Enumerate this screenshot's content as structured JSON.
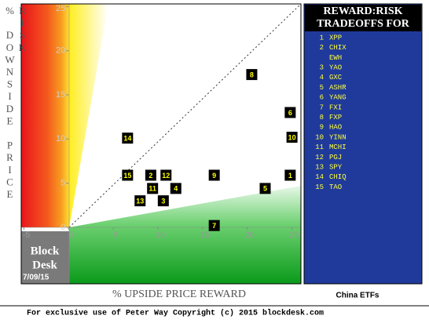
{
  "chart_data": {
    "type": "scatter",
    "x_label": "% UPSIDE PRICE REWARD",
    "y_label": "% DOWNSIDE PRICE RISK",
    "labels": [
      "1",
      "2",
      "3",
      "4",
      "5",
      "6",
      "7",
      "8",
      "9",
      "10",
      "11",
      "12",
      "13",
      "14",
      "15"
    ],
    "x": [
      24.8,
      9.2,
      10.6,
      12.0,
      22.0,
      24.8,
      16.3,
      20.5,
      16.3,
      25.0,
      9.4,
      10.9,
      8.0,
      6.6,
      6.6
    ],
    "values": [
      5.9,
      5.9,
      3.0,
      4.4,
      4.4,
      13.0,
      0.2,
      17.3,
      5.9,
      10.2,
      4.4,
      5.9,
      3.0,
      10.1,
      5.9
    ],
    "color": "#000000",
    "label_color": "#ffff00",
    "xlim": [
      -5.3,
      26
    ],
    "ylim": [
      -6.4,
      25.3
    ],
    "xticks": [
      -5,
      0,
      5,
      10,
      15,
      20,
      25
    ],
    "yticks": [
      0,
      5,
      10,
      15,
      20,
      25
    ],
    "diagonal": true
  },
  "brand": {
    "line1": "Block",
    "line2": "Desk",
    "date": "7/09/15"
  },
  "panel": {
    "title_lines": [
      "REWARD:RISK",
      "TRADEOFFS FOR"
    ],
    "items": [
      {
        "num": "1",
        "name": "XPP"
      },
      {
        "num": "2",
        "name": "CHIX"
      },
      {
        "name": "EWH"
      },
      {
        "num": "3",
        "name": "YAO"
      },
      {
        "num": "4",
        "name": "GXC"
      },
      {
        "num": "5",
        "name": "ASHR"
      },
      {
        "num": "6",
        "name": "YANG"
      },
      {
        "num": "7",
        "name": "FXI"
      },
      {
        "num": "8",
        "name": "FXP"
      },
      {
        "num": "9",
        "name": "HAO"
      },
      {
        "num": "10",
        "name": "YINN"
      },
      {
        "num": "11",
        "name": "MCHI"
      },
      {
        "num": "12",
        "name": "PGJ"
      },
      {
        "num": "13",
        "name": "SPY"
      },
      {
        "num": "14",
        "name": "CHIQ"
      },
      {
        "num": "15",
        "name": "TAO"
      }
    ],
    "caption": "China ETFs"
  },
  "footer": "For exclusive use of Peter Way Copyright (c) 2015 blockdesk.com"
}
